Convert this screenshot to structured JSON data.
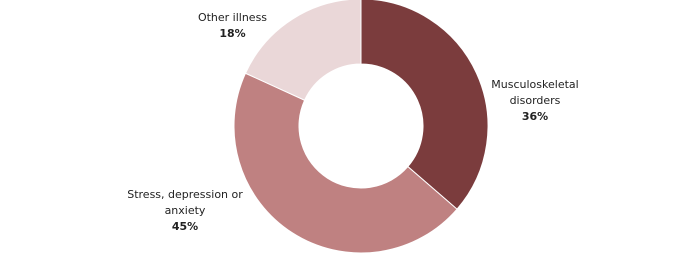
{
  "chart_data": {
    "type": "pie",
    "categories": [
      "Musculoskeletal disorders",
      "Stress, depression or anxiety",
      "Other illness"
    ],
    "values": [
      36,
      45,
      18
    ],
    "value_labels": [
      "36%",
      "45%",
      "18%"
    ],
    "colors": [
      "#7b3c3d",
      "#bf8181",
      "#ead7d8"
    ]
  }
}
